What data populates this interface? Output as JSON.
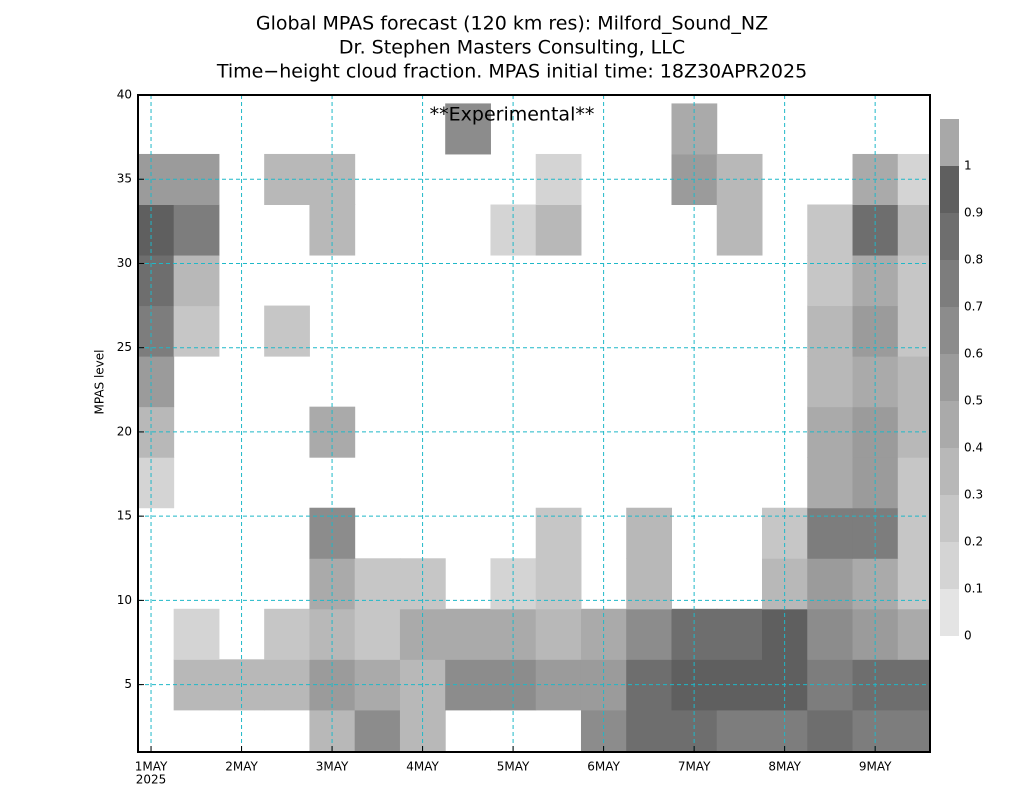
{
  "chart_data": {
    "type": "heatmap",
    "title_lines": [
      "Global MPAS forecast (120 km res): Milford_Sound_NZ",
      "Dr. Stephen Masters Consulting, LLC",
      "Time−height cloud fraction.   MPAS initial time: 18Z30APR2025"
    ],
    "annotation": "**Experimental**",
    "ylabel": "MPAS level",
    "x_sublabel": "2025",
    "x": [
      1.0,
      1.5,
      2.0,
      2.5,
      3.0,
      3.5,
      4.0,
      4.5,
      5.0,
      5.5,
      6.0,
      6.5,
      7.0,
      7.5,
      8.0,
      8.5,
      9.0,
      9.5
    ],
    "y": [
      2,
      5,
      8,
      11,
      14,
      17,
      20,
      23,
      26,
      29,
      32,
      35,
      38
    ],
    "values": [
      [
        0,
        0,
        0,
        0,
        0.3,
        0.6,
        0.3,
        0,
        0,
        0,
        0.6,
        0.8,
        0.8,
        0.7,
        0.7,
        0.8,
        0.7,
        0.7
      ],
      [
        0,
        0.3,
        0.3,
        0.3,
        0.5,
        0.4,
        0.3,
        0.6,
        0.6,
        0.5,
        0.5,
        0.8,
        0.9,
        0.9,
        0.9,
        0.7,
        0.8,
        0.8
      ],
      [
        0,
        0.1,
        0,
        0.2,
        0.3,
        0.2,
        0.4,
        0.4,
        0.4,
        0.3,
        0.4,
        0.6,
        0.8,
        0.8,
        0.9,
        0.6,
        0.5,
        0.4
      ],
      [
        0,
        0,
        0,
        0,
        0.4,
        0.2,
        0.2,
        0,
        0.1,
        0.2,
        0,
        0.3,
        0,
        0,
        0.3,
        0.5,
        0.4,
        0.2
      ],
      [
        0,
        0,
        0,
        0,
        0.6,
        0,
        0,
        0,
        0,
        0.2,
        0,
        0.3,
        0,
        0,
        0.2,
        0.7,
        0.7,
        0.2
      ],
      [
        0.1,
        0,
        0,
        0,
        0,
        0,
        0,
        0,
        0,
        0,
        0,
        0,
        0,
        0,
        0,
        0.4,
        0.5,
        0.2
      ],
      [
        0.3,
        0,
        0,
        0,
        0.4,
        0,
        0,
        0,
        0,
        0,
        0,
        0,
        0,
        0,
        0,
        0.4,
        0.5,
        0.3
      ],
      [
        0.5,
        0,
        0,
        0,
        0,
        0,
        0,
        0,
        0,
        0,
        0,
        0,
        0,
        0,
        0,
        0.3,
        0.4,
        0.3
      ],
      [
        0.7,
        0.2,
        0,
        0.2,
        0,
        0,
        0,
        0,
        0,
        0,
        0,
        0,
        0,
        0,
        0,
        0.3,
        0.5,
        0.2
      ],
      [
        0.8,
        0.3,
        0,
        0,
        0,
        0,
        0,
        0,
        0,
        0,
        0,
        0,
        0,
        0,
        0,
        0.2,
        0.4,
        0.2
      ],
      [
        0.9,
        0.7,
        0,
        0,
        0.3,
        0,
        0,
        0,
        0.1,
        0.3,
        0,
        0,
        0,
        0.3,
        0,
        0.2,
        0.8,
        0.3
      ],
      [
        0.5,
        0.5,
        0,
        0.3,
        0.3,
        0,
        0,
        0,
        0,
        0.1,
        0,
        0,
        0.5,
        0.3,
        0,
        0,
        0.4,
        0.1
      ],
      [
        0,
        0,
        0,
        0,
        0,
        0,
        0,
        0.6,
        0,
        0,
        0,
        0,
        0.4,
        0,
        0,
        0,
        0,
        0
      ]
    ],
    "xlim": [
      0.856,
      9.606
    ],
    "ylim": [
      1,
      40
    ],
    "xticks": [
      {
        "value": 1,
        "label": "1MAY"
      },
      {
        "value": 2,
        "label": "2MAY"
      },
      {
        "value": 3,
        "label": "3MAY"
      },
      {
        "value": 4,
        "label": "4MAY"
      },
      {
        "value": 5,
        "label": "5MAY"
      },
      {
        "value": 6,
        "label": "6MAY"
      },
      {
        "value": 7,
        "label": "7MAY"
      },
      {
        "value": 8,
        "label": "8MAY"
      },
      {
        "value": 9,
        "label": "9MAY"
      }
    ],
    "yticks": [
      5,
      10,
      15,
      20,
      25,
      30,
      35,
      40
    ],
    "grid": true,
    "grid_color": "#1fb8c8",
    "annotation_color": "#e04040",
    "colorbar": {
      "levels": [
        0,
        0.1,
        0.2,
        0.3,
        0.4,
        0.5,
        0.6,
        0.7,
        0.8,
        0.9,
        1
      ],
      "colors": [
        "#e4e4e4",
        "#d4d4d4",
        "#c6c6c6",
        "#b8b8b8",
        "#aaaaaa",
        "#9b9b9b",
        "#8c8c8c",
        "#7d7d7d",
        "#6e6e6e",
        "#5f5f5f",
        "#a8a8a8"
      ]
    }
  }
}
